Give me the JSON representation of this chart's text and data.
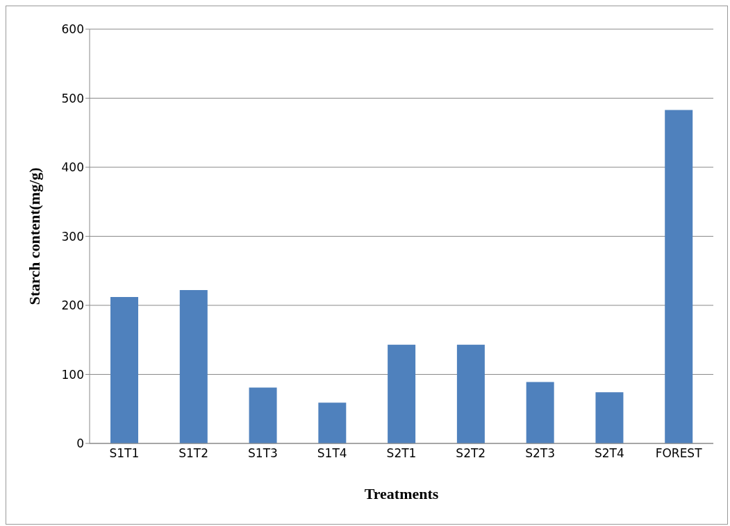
{
  "chart_data": {
    "type": "bar",
    "xlabel": "Treatments",
    "ylabel": "Starch content(mg/g)",
    "categories": [
      "S1T1",
      "S1T2",
      "S1T3",
      "S1T4",
      "S2T1",
      "S2T2",
      "S2T3",
      "S2T4",
      "FOREST"
    ],
    "values": [
      212,
      222,
      81,
      59,
      143,
      143,
      89,
      74,
      483
    ],
    "color": "#4f81bd",
    "ylim": [
      0,
      600
    ],
    "yticks": [
      0,
      100,
      200,
      300,
      400,
      500,
      600
    ],
    "grid": "y"
  }
}
